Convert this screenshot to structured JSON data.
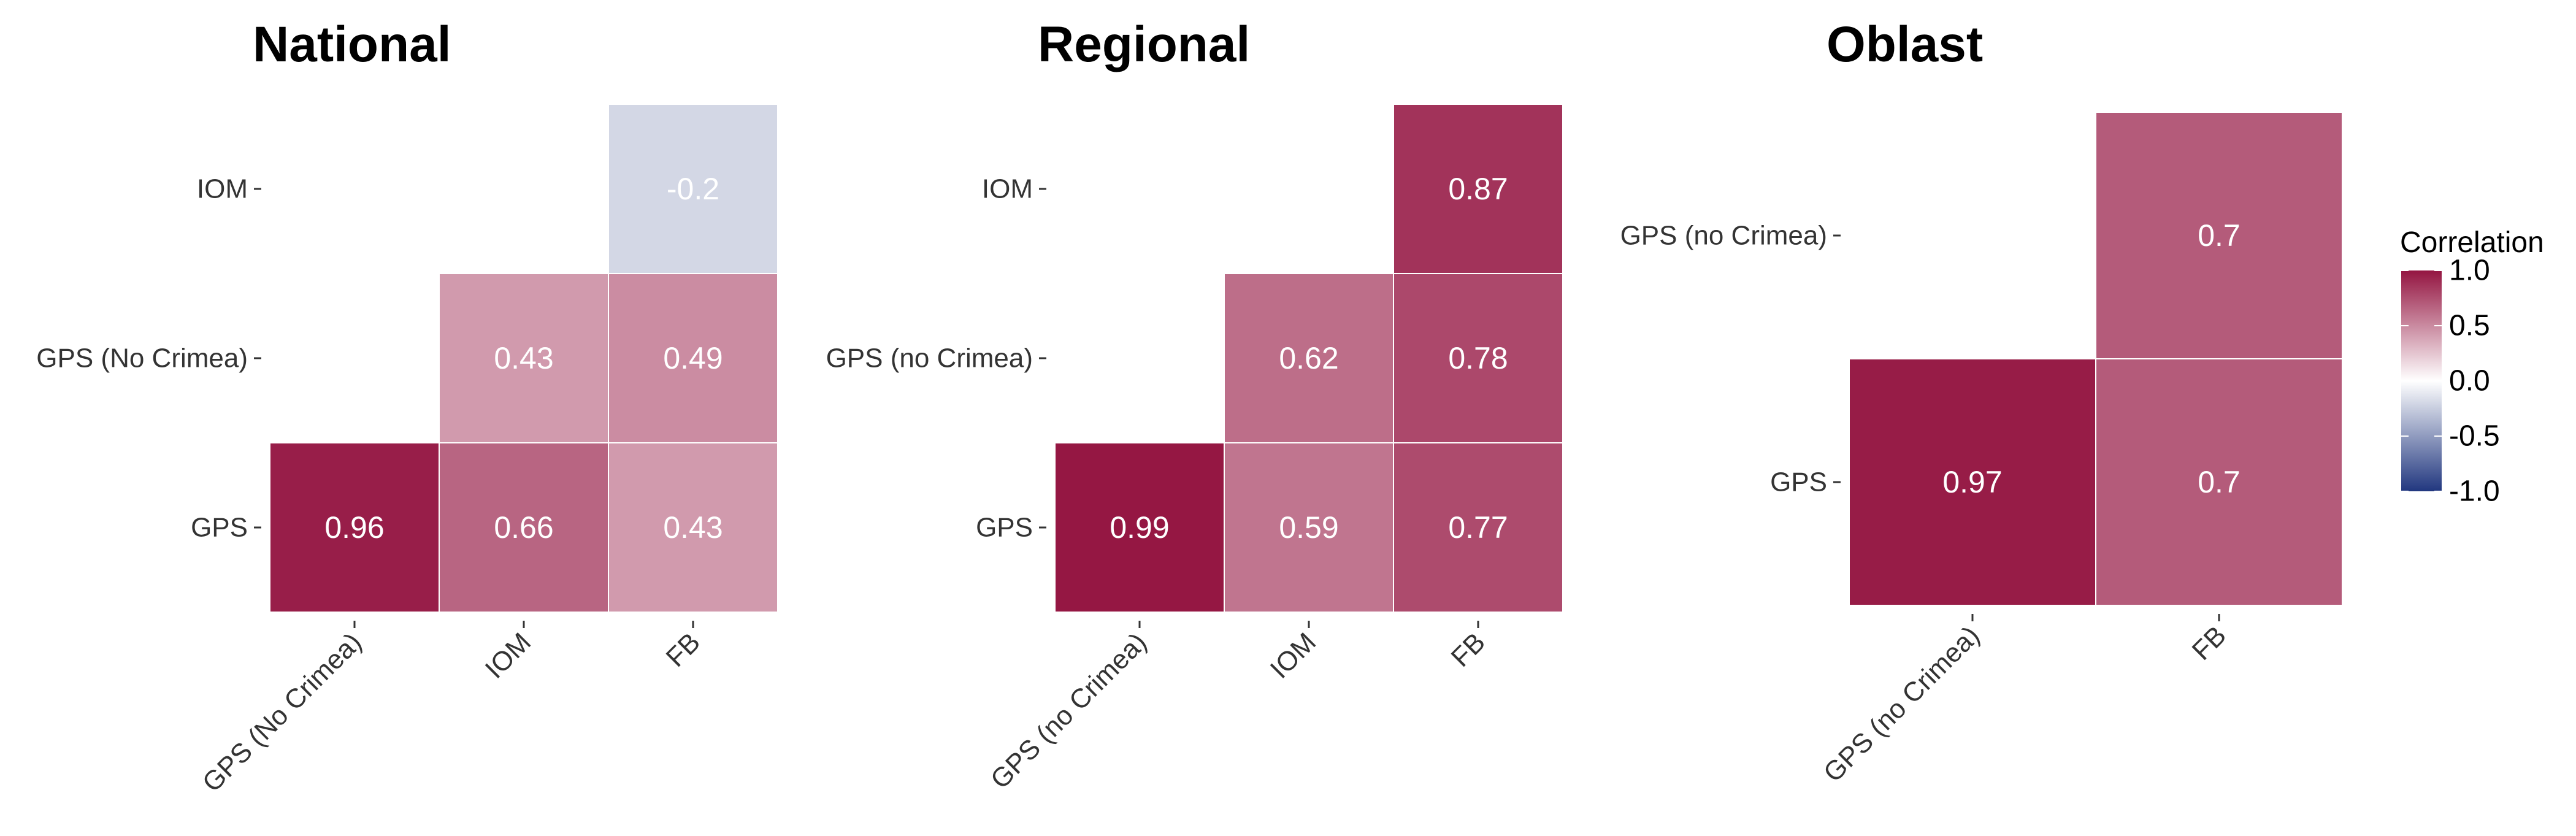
{
  "chart_data": [
    {
      "type": "heatmap",
      "title": "National",
      "x_categories": [
        "GPS (No Crimea)",
        "IOM",
        "FB"
      ],
      "y_categories": [
        "GPS",
        "GPS (No  Crimea)",
        "IOM"
      ],
      "cells": [
        {
          "x": "GPS (No Crimea)",
          "y": "GPS",
          "value": 0.96,
          "label": "0.96"
        },
        {
          "x": "IOM",
          "y": "GPS",
          "value": 0.66,
          "label": "0.66"
        },
        {
          "x": "FB",
          "y": "GPS",
          "value": 0.43,
          "label": "0.43"
        },
        {
          "x": "IOM",
          "y": "GPS (No  Crimea)",
          "value": 0.43,
          "label": "0.43"
        },
        {
          "x": "FB",
          "y": "GPS (No  Crimea)",
          "value": 0.49,
          "label": "0.49"
        },
        {
          "x": "FB",
          "y": "IOM",
          "value": -0.2,
          "label": "-0.2"
        }
      ]
    },
    {
      "type": "heatmap",
      "title": "Regional",
      "x_categories": [
        "GPS (no Crimea)",
        "IOM",
        "FB"
      ],
      "y_categories": [
        "GPS",
        "GPS (no Crimea)",
        "IOM"
      ],
      "cells": [
        {
          "x": "GPS (no Crimea)",
          "y": "GPS",
          "value": 0.99,
          "label": "0.99"
        },
        {
          "x": "IOM",
          "y": "GPS",
          "value": 0.59,
          "label": "0.59"
        },
        {
          "x": "FB",
          "y": "GPS",
          "value": 0.77,
          "label": "0.77"
        },
        {
          "x": "IOM",
          "y": "GPS (no Crimea)",
          "value": 0.62,
          "label": "0.62"
        },
        {
          "x": "FB",
          "y": "GPS (no Crimea)",
          "value": 0.78,
          "label": "0.78"
        },
        {
          "x": "FB",
          "y": "IOM",
          "value": 0.87,
          "label": "0.87"
        }
      ]
    },
    {
      "type": "heatmap",
      "title": "Oblast",
      "x_categories": [
        "GPS (no Crimea)",
        "FB"
      ],
      "y_categories": [
        "GPS",
        "GPS (no Crimea)"
      ],
      "cells": [
        {
          "x": "GPS (no Crimea)",
          "y": "GPS",
          "value": 0.97,
          "label": "0.97"
        },
        {
          "x": "FB",
          "y": "GPS",
          "value": 0.7,
          "label": "0.7"
        },
        {
          "x": "FB",
          "y": "GPS (no Crimea)",
          "value": 0.7,
          "label": "0.7"
        }
      ]
    }
  ],
  "legend": {
    "title": "Correlation",
    "ticks": [
      {
        "value": 1.0,
        "label": "1.0"
      },
      {
        "value": 0.5,
        "label": "0.5"
      },
      {
        "value": 0.0,
        "label": "0.0"
      },
      {
        "value": -0.5,
        "label": "-0.5"
      },
      {
        "value": -1.0,
        "label": "-1.0"
      }
    ],
    "range": [
      -1.0,
      1.0
    ],
    "placement": "right"
  },
  "colors": {
    "high": "#941541",
    "mid": "#ffffff",
    "low": "#21377f"
  }
}
